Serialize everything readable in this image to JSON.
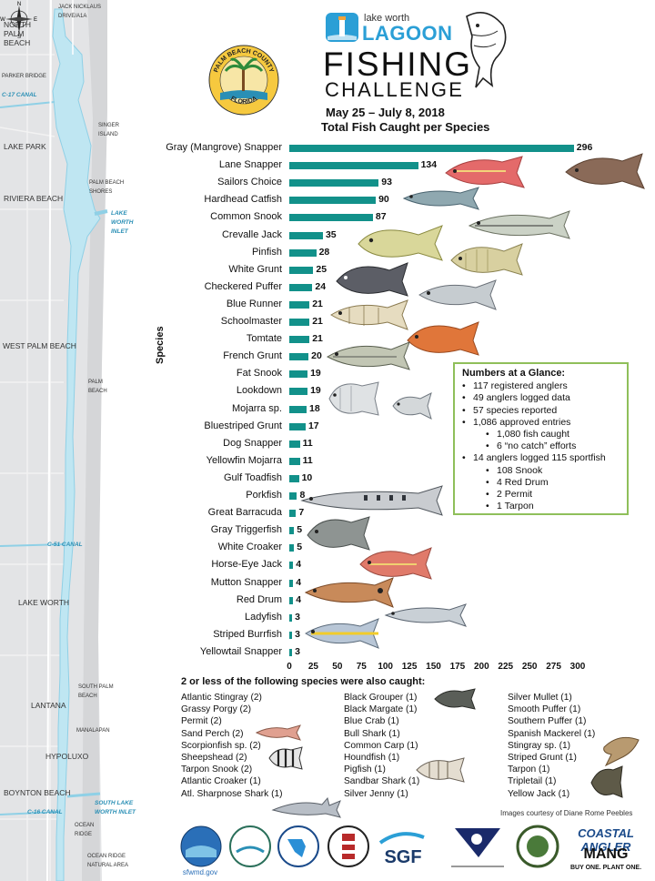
{
  "header": {
    "lwl_small": "lake worth",
    "lwl_big": "LAGOON",
    "title_line1": "FISHING",
    "title_line2": "CHALLENGE",
    "date_range": "May 25 – July 8, 2018",
    "county_seal_top": "PALM BEACH COUNTY",
    "county_seal_bottom": "FLORIDA"
  },
  "map": {
    "labels": [
      "JACK NICKLAUS DRIVE/A1A",
      "NORTH PALM BEACH",
      "PARKER BRIDGE",
      "C-17 CANAL",
      "SINGER ISLAND",
      "LAKE PARK",
      "PALM BEACH SHORES",
      "RIVIERA BEACH",
      "LAKE WORTH INLET",
      "WEST PALM BEACH",
      "PALM BEACH",
      "C-51 CANAL",
      "LAKE WORTH",
      "SOUTH PALM BEACH",
      "LANTANA",
      "MANALAPAN",
      "HYPOLUXO",
      "BOYNTON BEACH",
      "SOUTH LAKE WORTH INLET",
      "C-16 CANAL",
      "OCEAN RIDGE",
      "OCEAN RIDGE NATURAL AREA"
    ],
    "compass": {
      "n": "N",
      "s": "S",
      "e": "E",
      "w": "W"
    }
  },
  "chart_data": {
    "type": "bar",
    "orientation": "horizontal",
    "title": "Total Fish Caught per Species",
    "ylabel": "Species",
    "xlabel": "",
    "xlim": [
      0,
      300
    ],
    "xticks": [
      "0",
      "25",
      "50",
      "75",
      "100",
      "125",
      "150",
      "175",
      "200",
      "225",
      "250",
      "275",
      "300"
    ],
    "color": "#12918a",
    "categories": [
      "Gray (Mangrove) Snapper",
      "Lane Snapper",
      "Sailors Choice",
      "Hardhead Catfish",
      "Common Snook",
      "Crevalle Jack",
      "Pinfish",
      "White Grunt",
      "Checkered Puffer",
      "Blue Runner",
      "Schoolmaster",
      "Tomtate",
      "French Grunt",
      "Fat Snook",
      "Lookdown",
      "Mojarra sp.",
      "Bluestriped Grunt",
      "Dog Snapper",
      "Yellowfin Mojarra",
      "Gulf Toadfish",
      "Porkfish",
      "Great Barracuda",
      "Gray Triggerfish",
      "White Croaker",
      "Horse-Eye Jack",
      "Mutton Snapper",
      "Red Drum",
      "Ladyfish",
      "Striped Burrfish",
      "Yellowtail Snapper"
    ],
    "values": [
      296,
      134,
      93,
      90,
      87,
      35,
      28,
      25,
      24,
      21,
      21,
      21,
      20,
      19,
      19,
      18,
      17,
      11,
      11,
      10,
      8,
      7,
      5,
      5,
      4,
      4,
      4,
      3,
      3,
      3
    ]
  },
  "glance": {
    "title": "Numbers at a Glance:",
    "items": [
      {
        "text": "117 registered anglers",
        "level": 1
      },
      {
        "text": "49 anglers logged data",
        "level": 1
      },
      {
        "text": "57 species reported",
        "level": 1
      },
      {
        "text": "1,086 approved entries",
        "level": 1
      },
      {
        "text": "1,080 fish caught",
        "level": 2
      },
      {
        "text": "6 “no catch” efforts",
        "level": 2
      },
      {
        "text": "14 anglers logged 115 sportfish",
        "level": 1
      },
      {
        "text": "108 Snook",
        "level": 2
      },
      {
        "text": "4 Red Drum",
        "level": 2
      },
      {
        "text": "2 Permit",
        "level": 2
      },
      {
        "text": "1 Tarpon",
        "level": 2
      }
    ]
  },
  "other_species": {
    "title": "2 or less of the following species were also caught:",
    "col1": [
      "Atlantic Stingray (2)",
      "Grassy Porgy (2)",
      "Permit (2)",
      "Sand Perch (2)",
      "Scorpionfish sp. (2)",
      "Sheepshead (2)",
      "Tarpon Snook (2)",
      "Atlantic Croaker (1)",
      "Atl. Sharpnose Shark (1)"
    ],
    "col2": [
      "Black Grouper (1)",
      "Black Margate (1)",
      "Blue Crab (1)",
      "Bull Shark (1)",
      "Common Carp (1)",
      "Houndfish (1)",
      "Pigfish (1)",
      "Sandbar Shark (1)",
      "Silver Jenny (1)"
    ],
    "col3": [
      "Silver Mullet (1)",
      "Smooth Puffer (1)",
      "Southern Puffer (1)",
      "Spanish Mackerel (1)",
      "Stingray sp. (1)",
      "Striped Grunt (1)",
      "Tarpon (1)",
      "Tripletail (1)",
      "Yellow Jack (1)"
    ]
  },
  "credit": "Images courtesy of Diane Rome Peebles",
  "sponsors": [
    "sfwmd.gov",
    "SGF",
    "COASTAL ANGLER",
    "MANG",
    "BUY ONE. PLANT ONE."
  ]
}
